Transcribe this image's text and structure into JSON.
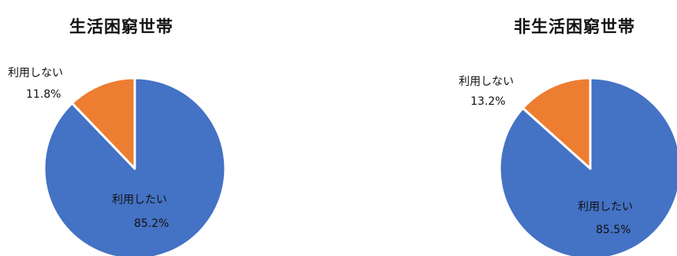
{
  "chart_data": [
    {
      "type": "pie",
      "title": "生活困窮世帯",
      "slices": [
        {
          "label": "利用したい",
          "value": 85.2,
          "value_text": "85.2%",
          "color": "#4472C4"
        },
        {
          "label": "利用しない",
          "value": 11.8,
          "value_text": "11.8%",
          "color": "#ED7D31"
        }
      ]
    },
    {
      "type": "pie",
      "title": "非生活困窮世帯",
      "slices": [
        {
          "label": "利用したい",
          "value": 85.5,
          "value_text": "85.5%",
          "color": "#4472C4"
        },
        {
          "label": "利用しない",
          "value": 13.2,
          "value_text": "13.2%",
          "color": "#ED7D31"
        }
      ]
    }
  ]
}
